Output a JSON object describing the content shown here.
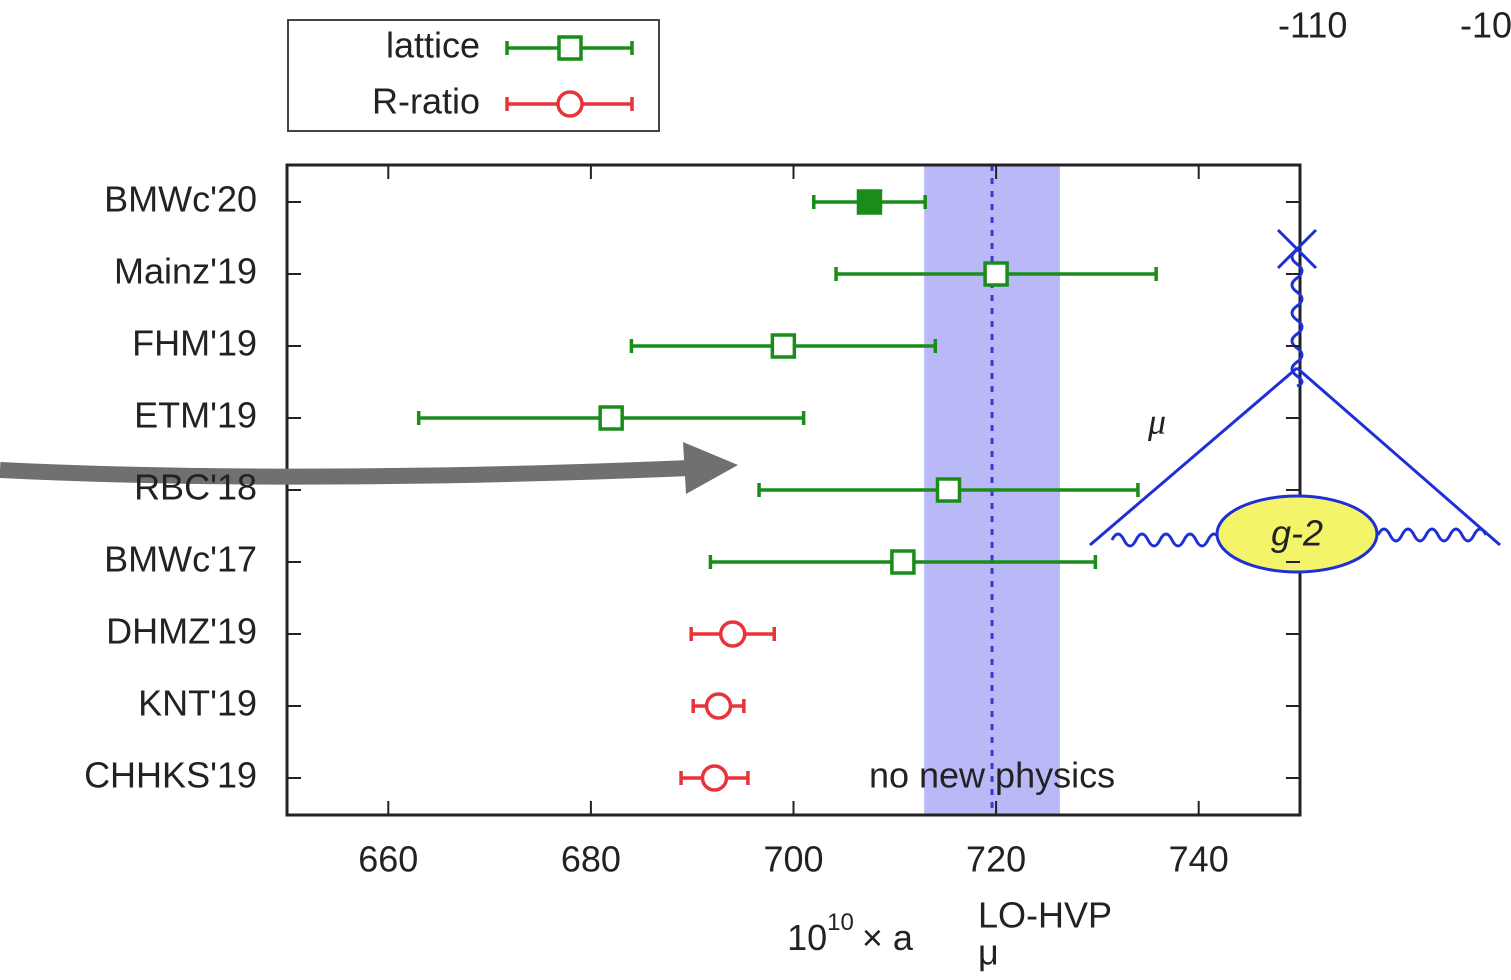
{
  "chart_data": {
    "type": "errorbar",
    "categories": [
      "BMWc'20",
      "Mainz'19",
      "FHM'19",
      "ETM'19",
      "RBC'18",
      "BMWc'17",
      "DHMZ'19",
      "KNT'19",
      "CHHKS'19"
    ],
    "series": [
      {
        "name": "lattice",
        "color": "#1a8c1a",
        "marker": "square",
        "values": [
          707.5,
          720.0,
          699.0,
          682.0,
          715.3,
          710.8,
          null,
          null,
          null
        ],
        "errors": [
          5.5,
          15.8,
          15.0,
          19.0,
          18.7,
          19.0,
          null,
          null,
          null
        ],
        "filled": [
          true,
          false,
          false,
          false,
          false,
          false,
          null,
          null,
          null
        ]
      },
      {
        "name": "R-ratio",
        "color": "#e8333a",
        "marker": "circle",
        "values": [
          null,
          null,
          null,
          null,
          null,
          null,
          694.0,
          692.6,
          692.2
        ],
        "errors": [
          null,
          null,
          null,
          null,
          null,
          null,
          4.1,
          2.5,
          3.3
        ],
        "filled": [
          null,
          null,
          null,
          null,
          null,
          null,
          false,
          false,
          false
        ]
      }
    ],
    "xlim": [
      650,
      750
    ],
    "xticks": [
      660,
      680,
      700,
      720,
      740
    ],
    "xlabel": {
      "base": "10",
      "exp": "10",
      "times": "× a",
      "sub": "μ",
      "sup": "LO-HVP"
    },
    "band": {
      "range": [
        712.9,
        726.3
      ],
      "line": 719.6,
      "label": "no new physics",
      "color": "#b9b9f7",
      "line_color": "#3a3ad0",
      "label_color": "#2d2de0"
    },
    "legend": "top-left-outside",
    "annotations": {
      "mu": "μ",
      "g2": "g-2",
      "corner_1": "-110",
      "corner_2": "-10"
    }
  }
}
